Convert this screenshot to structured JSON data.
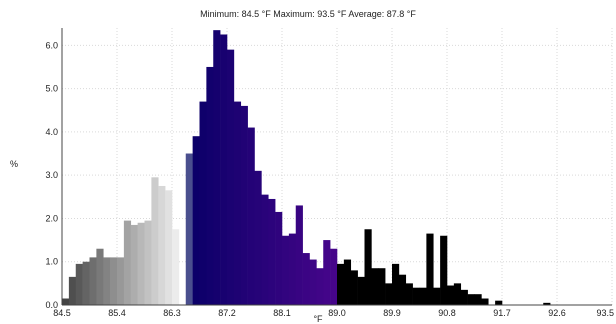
{
  "chart_data": {
    "type": "bar",
    "title": "Minimum: 84.5 °F Maximum: 93.5 °F Average: 87.8 °F",
    "xlabel": "°F",
    "ylabel": "%",
    "xlim": [
      84.5,
      93.5
    ],
    "ylim": [
      0,
      6.4
    ],
    "x_ticks": [
      "84.5",
      "85.4",
      "86.3",
      "87.2",
      "88.1",
      "89.0",
      "89.9",
      "90.8",
      "91.7",
      "92.6",
      "93.5"
    ],
    "y_ticks": [
      "0.0",
      "1.0",
      "2.0",
      "3.0",
      "4.0",
      "5.0",
      "6.0"
    ],
    "grid": true,
    "bin_width": 0.1125,
    "bin_start": 84.5,
    "values": [
      0.15,
      0.65,
      0.95,
      1.0,
      1.1,
      1.3,
      1.1,
      1.1,
      1.1,
      1.95,
      1.85,
      1.9,
      1.95,
      2.95,
      2.75,
      2.65,
      1.75,
      0.0,
      3.5,
      3.9,
      4.7,
      5.5,
      6.35,
      6.25,
      5.9,
      4.7,
      4.6,
      4.1,
      3.1,
      2.55,
      2.45,
      2.15,
      1.6,
      1.65,
      2.3,
      1.2,
      1.05,
      0.85,
      1.5,
      1.3,
      0.95,
      1.05,
      0.8,
      0.65,
      1.75,
      0.85,
      0.85,
      0.5,
      0.95,
      0.7,
      0.5,
      0.4,
      0.4,
      1.65,
      0.4,
      1.6,
      0.45,
      0.5,
      0.35,
      0.25,
      0.25,
      0.15,
      0.0,
      0.1,
      0.0,
      0.0,
      0.0,
      0.0,
      0.0,
      0.0,
      0.05,
      0.0
    ],
    "colors": {
      "gray_dark": "#3f3f3f",
      "gray_light": "#f0f0f0",
      "slate": "#4a4f8e",
      "navy": "#0a0068",
      "violet": "#7a0aa8",
      "magenta": "#c000c8"
    }
  }
}
